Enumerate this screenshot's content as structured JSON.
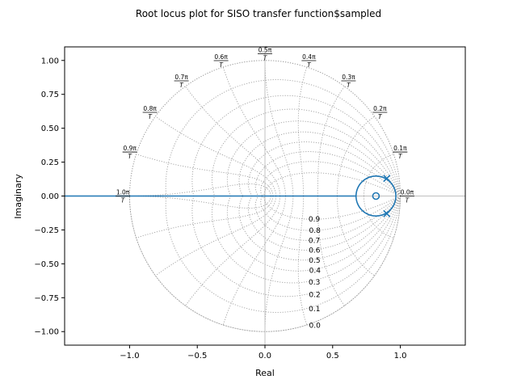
{
  "chart_data": {
    "type": "line",
    "title": "Root locus plot for SISO transfer function$sampled",
    "xlabel": "Real",
    "ylabel": "Imaginary",
    "xlim": [
      -1.48,
      1.48
    ],
    "ylim": [
      -1.1,
      1.1
    ],
    "xticks": [
      -1.0,
      -0.5,
      0.0,
      0.5,
      1.0
    ],
    "xtick_labels": [
      "−1.0",
      "−0.5",
      "0.0",
      "0.5",
      "1.0"
    ],
    "yticks": [
      1.0,
      0.75,
      0.5,
      0.25,
      0.0,
      -0.25,
      -0.5,
      -0.75,
      -1.0
    ],
    "ytick_labels": [
      "1.00",
      "0.75",
      "0.50",
      "0.25",
      "0.00",
      "−0.25",
      "−0.50",
      "−0.75",
      "−1.00"
    ],
    "zeta_labels": [
      "0.9",
      "0.8",
      "0.7",
      "0.6",
      "0.5",
      "0.4",
      "0.3",
      "0.2",
      "0.1",
      "0.0"
    ],
    "wn_labels": [
      "0.0π",
      "0.1π",
      "0.2π",
      "0.3π",
      "0.4π",
      "0.5π",
      "0.6π",
      "0.7π",
      "0.8π",
      "0.9π",
      "1.0π"
    ],
    "wn_denominator": "T",
    "grid": true,
    "poles": [
      {
        "re": 0.9,
        "im": 0.13
      },
      {
        "re": 0.9,
        "im": -0.13
      }
    ],
    "zeros": [
      {
        "re": 0.82,
        "im": 0.0
      }
    ],
    "locus_circle": {
      "center_re": 0.82,
      "center_im": 0.0,
      "radius": 0.147
    },
    "locus_real_segment": [
      -1.48,
      0.673
    ],
    "colors": {
      "locus": "#1f77b4",
      "grid": "#a0a0a0",
      "axis_lines": "#c0c0c0"
    }
  }
}
